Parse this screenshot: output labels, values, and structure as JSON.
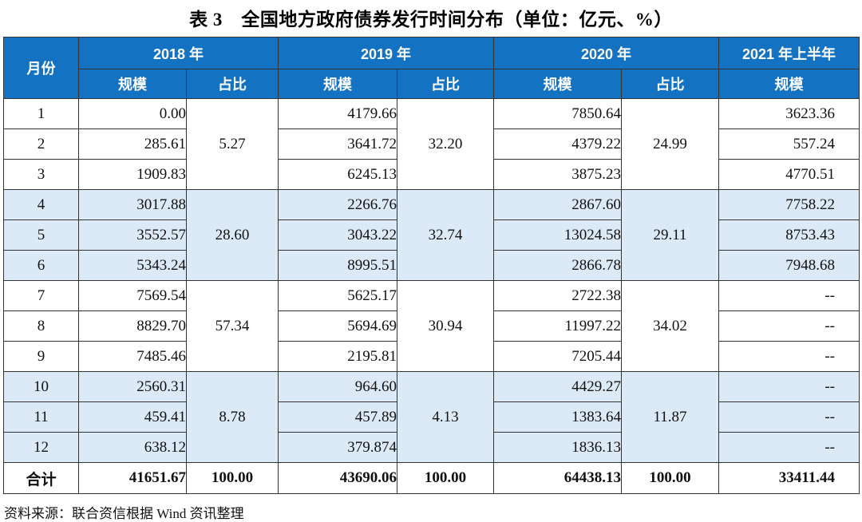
{
  "title": "表 3　全国地方政府债券发行时间分布（单位：亿元、%）",
  "source_note": "资料来源：联合资信根据 Wind 资讯整理",
  "colors": {
    "header_bg": "#1472c3",
    "header_text": "#ffffff",
    "band_bg": "#dce9f6",
    "border": "#333333"
  },
  "table": {
    "col_headers": {
      "month": "月份",
      "groups": [
        {
          "label": "2018 年",
          "cols": [
            "规模",
            "占比"
          ]
        },
        {
          "label": "2019 年",
          "cols": [
            "规模",
            "占比"
          ]
        },
        {
          "label": "2020 年",
          "cols": [
            "规模",
            "占比"
          ]
        },
        {
          "label": "2021 年上半年",
          "cols": [
            "规模"
          ]
        }
      ]
    },
    "quarters": [
      {
        "shaded": false,
        "p2018": "5.27",
        "p2019": "32.20",
        "p2020": "24.99",
        "months": [
          {
            "month": "1",
            "s2018": "0.00",
            "s2019": "4179.66",
            "s2020": "7850.64",
            "s2021": "3623.36"
          },
          {
            "month": "2",
            "s2018": "285.61",
            "s2019": "3641.72",
            "s2020": "4379.22",
            "s2021": "557.24"
          },
          {
            "month": "3",
            "s2018": "1909.83",
            "s2019": "6245.13",
            "s2020": "3875.23",
            "s2021": "4770.51"
          }
        ]
      },
      {
        "shaded": true,
        "p2018": "28.60",
        "p2019": "32.74",
        "p2020": "29.11",
        "months": [
          {
            "month": "4",
            "s2018": "3017.88",
            "s2019": "2266.76",
            "s2020": "2867.60",
            "s2021": "7758.22"
          },
          {
            "month": "5",
            "s2018": "3552.57",
            "s2019": "3043.22",
            "s2020": "13024.58",
            "s2021": "8753.43"
          },
          {
            "month": "6",
            "s2018": "5343.24",
            "s2019": "8995.51",
            "s2020": "2866.78",
            "s2021": "7948.68"
          }
        ]
      },
      {
        "shaded": false,
        "p2018": "57.34",
        "p2019": "30.94",
        "p2020": "34.02",
        "months": [
          {
            "month": "7",
            "s2018": "7569.54",
            "s2019": "5625.17",
            "s2020": "2722.38",
            "s2021": "--"
          },
          {
            "month": "8",
            "s2018": "8829.70",
            "s2019": "5694.69",
            "s2020": "11997.22",
            "s2021": "--"
          },
          {
            "month": "9",
            "s2018": "7485.46",
            "s2019": "2195.81",
            "s2020": "7205.44",
            "s2021": "--"
          }
        ]
      },
      {
        "shaded": true,
        "p2018": "8.78",
        "p2019": "4.13",
        "p2020": "11.87",
        "months": [
          {
            "month": "10",
            "s2018": "2560.31",
            "s2019": "964.60",
            "s2020": "4429.27",
            "s2021": "--"
          },
          {
            "month": "11",
            "s2018": "459.41",
            "s2019": "457.89",
            "s2020": "1383.64",
            "s2021": "--"
          },
          {
            "month": "12",
            "s2018": "638.12",
            "s2019": "379.874",
            "s2020": "1836.13",
            "s2021": "--"
          }
        ]
      }
    ],
    "total": {
      "label": "合计",
      "s2018": "41651.67",
      "p2018": "100.00",
      "s2019": "43690.06",
      "p2019": "100.00",
      "s2020": "64438.13",
      "p2020": "100.00",
      "s2021": "33411.44"
    }
  }
}
